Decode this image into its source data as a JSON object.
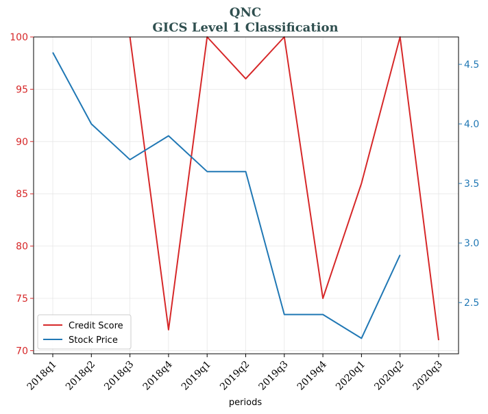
{
  "chart_data": {
    "type": "line",
    "title": "QNC",
    "subtitle": "GICS Level 1 Classification",
    "xlabel": "periods",
    "categories": [
      "2018q1",
      "2018q2",
      "2018q3",
      "2018q4",
      "2019q1",
      "2019q2",
      "2019q3",
      "2019q4",
      "2020q1",
      "2020q2",
      "2020q3"
    ],
    "series": [
      {
        "name": "Credit Score",
        "axis": "left",
        "color": "#d62728",
        "values": [
          null,
          null,
          100,
          72,
          100,
          96,
          100,
          75,
          86,
          100,
          71
        ]
      },
      {
        "name": "Stock Price",
        "axis": "right",
        "color": "#1f77b4",
        "values": [
          4.6,
          4.0,
          3.7,
          3.9,
          3.6,
          3.6,
          2.4,
          2.4,
          2.2,
          2.9,
          null
        ]
      }
    ],
    "y_left": {
      "lim": [
        69.7,
        100
      ],
      "ticks": [
        "70",
        "75",
        "80",
        "85",
        "90",
        "95",
        "100"
      ],
      "tick_values": [
        70,
        75,
        80,
        85,
        90,
        95,
        100
      ]
    },
    "y_right": {
      "lim": [
        2.07,
        4.73
      ],
      "ticks": [
        "2.5",
        "3.0",
        "3.5",
        "4.0",
        "4.5"
      ],
      "tick_values": [
        2.5,
        3.0,
        3.5,
        4.0,
        4.5
      ]
    },
    "grid": true,
    "legend_position": "bottom-left"
  }
}
